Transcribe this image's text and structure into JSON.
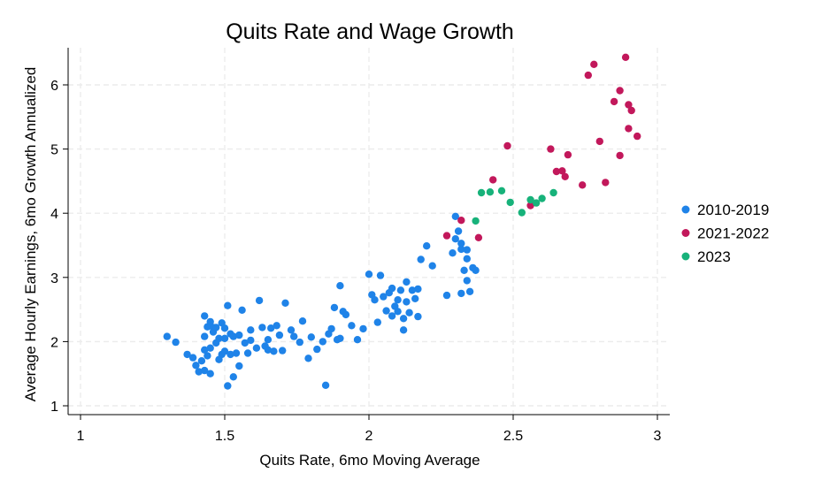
{
  "chart_data": {
    "type": "scatter",
    "title": "Quits Rate and Wage Growth",
    "xlabel": "Quits Rate, 6mo Moving Average",
    "ylabel": "Average Hourly Earnings, 6mo Growth Annualized",
    "xlim": [
      1,
      3
    ],
    "ylim": [
      1,
      6
    ],
    "xticks": [
      1,
      1.5,
      2,
      2.5,
      3
    ],
    "xtick_labels": [
      "1",
      "1.5",
      "2",
      "2.5",
      "3"
    ],
    "yticks": [
      1,
      2,
      3,
      4,
      5,
      6
    ],
    "ytick_labels": [
      "1",
      "2",
      "3",
      "4",
      "5",
      "6"
    ],
    "grid": true,
    "legend_position": "right",
    "series": [
      {
        "name": "2010-2019",
        "color": "#1f83e8",
        "points": [
          [
            1.3,
            2.08
          ],
          [
            1.33,
            1.99
          ],
          [
            1.37,
            1.8
          ],
          [
            1.39,
            1.75
          ],
          [
            1.4,
            1.63
          ],
          [
            1.41,
            1.53
          ],
          [
            1.42,
            1.7
          ],
          [
            1.43,
            2.08
          ],
          [
            1.43,
            1.87
          ],
          [
            1.43,
            1.55
          ],
          [
            1.43,
            2.4
          ],
          [
            1.44,
            1.78
          ],
          [
            1.44,
            2.23
          ],
          [
            1.45,
            1.5
          ],
          [
            1.45,
            1.9
          ],
          [
            1.45,
            2.31
          ],
          [
            1.46,
            2.22
          ],
          [
            1.46,
            2.15
          ],
          [
            1.47,
            1.98
          ],
          [
            1.47,
            2.22
          ],
          [
            1.48,
            2.05
          ],
          [
            1.48,
            1.72
          ],
          [
            1.49,
            2.29
          ],
          [
            1.49,
            1.8
          ],
          [
            1.5,
            2.21
          ],
          [
            1.5,
            1.85
          ],
          [
            1.5,
            2.05
          ],
          [
            1.51,
            2.56
          ],
          [
            1.51,
            1.31
          ],
          [
            1.52,
            1.8
          ],
          [
            1.52,
            2.12
          ],
          [
            1.53,
            1.45
          ],
          [
            1.53,
            2.08
          ],
          [
            1.54,
            1.82
          ],
          [
            1.55,
            2.1
          ],
          [
            1.55,
            1.62
          ],
          [
            1.56,
            2.49
          ],
          [
            1.57,
            1.98
          ],
          [
            1.58,
            1.82
          ],
          [
            1.59,
            2.02
          ],
          [
            1.59,
            2.18
          ],
          [
            1.61,
            1.9
          ],
          [
            1.62,
            2.64
          ],
          [
            1.63,
            2.22
          ],
          [
            1.64,
            1.93
          ],
          [
            1.65,
            2.03
          ],
          [
            1.65,
            1.87
          ],
          [
            1.66,
            2.21
          ],
          [
            1.67,
            1.85
          ],
          [
            1.68,
            2.25
          ],
          [
            1.69,
            2.1
          ],
          [
            1.7,
            1.86
          ],
          [
            1.71,
            2.6
          ],
          [
            1.73,
            2.18
          ],
          [
            1.74,
            2.08
          ],
          [
            1.76,
            1.99
          ],
          [
            1.77,
            2.32
          ],
          [
            1.79,
            1.74
          ],
          [
            1.8,
            2.07
          ],
          [
            1.82,
            1.88
          ],
          [
            1.84,
            2.0
          ],
          [
            1.85,
            1.32
          ],
          [
            1.86,
            2.12
          ],
          [
            1.87,
            2.2
          ],
          [
            1.88,
            2.53
          ],
          [
            1.89,
            2.03
          ],
          [
            1.9,
            2.05
          ],
          [
            1.9,
            2.87
          ],
          [
            1.91,
            2.47
          ],
          [
            1.92,
            2.42
          ],
          [
            1.94,
            2.25
          ],
          [
            1.96,
            2.03
          ],
          [
            1.98,
            2.2
          ],
          [
            2.0,
            3.05
          ],
          [
            2.01,
            2.73
          ],
          [
            2.02,
            2.65
          ],
          [
            2.03,
            2.3
          ],
          [
            2.04,
            3.03
          ],
          [
            2.05,
            2.7
          ],
          [
            2.06,
            2.48
          ],
          [
            2.07,
            2.76
          ],
          [
            2.08,
            2.4
          ],
          [
            2.08,
            2.83
          ],
          [
            2.09,
            2.55
          ],
          [
            2.1,
            2.47
          ],
          [
            2.1,
            2.65
          ],
          [
            2.11,
            2.8
          ],
          [
            2.12,
            2.36
          ],
          [
            2.12,
            2.18
          ],
          [
            2.13,
            2.93
          ],
          [
            2.13,
            2.62
          ],
          [
            2.14,
            2.45
          ],
          [
            2.15,
            2.8
          ],
          [
            2.16,
            2.67
          ],
          [
            2.17,
            2.39
          ],
          [
            2.17,
            2.82
          ],
          [
            2.18,
            3.28
          ],
          [
            2.2,
            3.49
          ],
          [
            2.22,
            3.18
          ],
          [
            2.27,
            2.72
          ],
          [
            2.29,
            3.38
          ],
          [
            2.3,
            3.95
          ],
          [
            2.3,
            3.6
          ],
          [
            2.31,
            3.72
          ],
          [
            2.32,
            3.44
          ],
          [
            2.32,
            2.75
          ],
          [
            2.32,
            3.53
          ],
          [
            2.33,
            3.11
          ],
          [
            2.34,
            3.43
          ],
          [
            2.34,
            3.29
          ],
          [
            2.34,
            2.95
          ],
          [
            2.35,
            2.78
          ],
          [
            2.36,
            3.15
          ],
          [
            2.37,
            3.11
          ]
        ]
      },
      {
        "name": "2021-2022",
        "color": "#c2185b",
        "points": [
          [
            2.27,
            3.65
          ],
          [
            2.32,
            3.89
          ],
          [
            2.38,
            3.62
          ],
          [
            2.43,
            4.52
          ],
          [
            2.48,
            5.05
          ],
          [
            2.56,
            4.12
          ],
          [
            2.63,
            5.0
          ],
          [
            2.65,
            4.65
          ],
          [
            2.67,
            4.66
          ],
          [
            2.68,
            4.57
          ],
          [
            2.69,
            4.91
          ],
          [
            2.74,
            4.44
          ],
          [
            2.76,
            6.15
          ],
          [
            2.78,
            6.32
          ],
          [
            2.8,
            5.12
          ],
          [
            2.82,
            4.48
          ],
          [
            2.85,
            5.74
          ],
          [
            2.87,
            4.9
          ],
          [
            2.87,
            5.91
          ],
          [
            2.89,
            6.43
          ],
          [
            2.9,
            5.69
          ],
          [
            2.9,
            5.32
          ],
          [
            2.91,
            5.6
          ],
          [
            2.93,
            5.2
          ]
        ]
      },
      {
        "name": "2023",
        "color": "#17b27a",
        "points": [
          [
            2.37,
            3.88
          ],
          [
            2.39,
            4.32
          ],
          [
            2.42,
            4.33
          ],
          [
            2.46,
            4.35
          ],
          [
            2.49,
            4.17
          ],
          [
            2.53,
            4.01
          ],
          [
            2.56,
            4.21
          ],
          [
            2.58,
            4.16
          ],
          [
            2.6,
            4.23
          ],
          [
            2.64,
            4.32
          ]
        ]
      }
    ]
  }
}
